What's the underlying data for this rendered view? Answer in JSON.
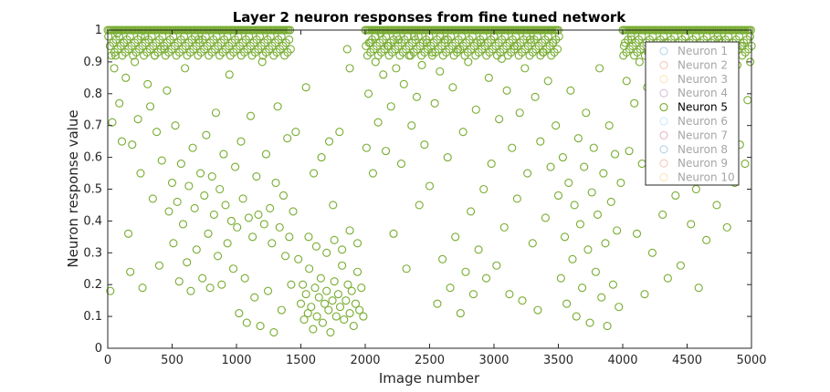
{
  "chart_data": {
    "type": "scatter",
    "title": "Layer 2 neuron responses from fine tuned network",
    "xlabel": "Image number",
    "ylabel": "Neuron response value",
    "xlim": [
      0,
      5000
    ],
    "ylim": [
      0,
      1
    ],
    "xticks": [
      "0",
      "500",
      "1000",
      "1500",
      "2000",
      "2500",
      "3000",
      "3500",
      "4000",
      "4500",
      "5000"
    ],
    "yticks": [
      "0",
      "0.1",
      "0.2",
      "0.3",
      "0.4",
      "0.5",
      "0.6",
      "0.7",
      "0.8",
      "0.9",
      "1"
    ],
    "grid": false,
    "legend_position": "top-right",
    "marker": "open-circle",
    "active_series": "Neuron 5",
    "legend": [
      {
        "name": "Neuron 1",
        "color": "#0072BD",
        "active": false
      },
      {
        "name": "Neuron 2",
        "color": "#D95319",
        "active": false
      },
      {
        "name": "Neuron 3",
        "color": "#EDB120",
        "active": false
      },
      {
        "name": "Neuron 4",
        "color": "#7E2F8E",
        "active": false
      },
      {
        "name": "Neuron 5",
        "color": "#77AC30",
        "active": true
      },
      {
        "name": "Neuron 6",
        "color": "#4DBEEE",
        "active": false
      },
      {
        "name": "Neuron 7",
        "color": "#A2142F",
        "active": false
      },
      {
        "name": "Neuron 8",
        "color": "#0072BD",
        "active": false
      },
      {
        "name": "Neuron 9",
        "color": "#D95319",
        "active": false
      },
      {
        "name": "Neuron 10",
        "color": "#EDB120",
        "active": false
      }
    ],
    "series": [
      {
        "name": "Neuron 5",
        "color": "#77AC30",
        "points": [
          [
            20,
            0.18
          ],
          [
            35,
            0.71
          ],
          [
            50,
            0.88
          ],
          [
            60,
            0.92
          ],
          [
            75,
            0.99
          ],
          [
            90,
            0.77
          ],
          [
            110,
            0.65
          ],
          [
            125,
            0.96
          ],
          [
            140,
            0.85
          ],
          [
            160,
            0.36
          ],
          [
            175,
            0.24
          ],
          [
            190,
            0.64
          ],
          [
            210,
            0.9
          ],
          [
            235,
            0.72
          ],
          [
            255,
            0.55
          ],
          [
            270,
            0.19
          ],
          [
            290,
            0.98
          ],
          [
            310,
            0.83
          ],
          [
            330,
            0.76
          ],
          [
            350,
            0.47
          ],
          [
            365,
            0.92
          ],
          [
            380,
            0.68
          ],
          [
            400,
            0.26
          ],
          [
            420,
            0.59
          ],
          [
            440,
            0.94
          ],
          [
            460,
            0.81
          ],
          [
            475,
            0.43
          ],
          [
            500,
            0.52
          ],
          [
            510,
            0.33
          ],
          [
            525,
            0.7
          ],
          [
            540,
            0.46
          ],
          [
            555,
            0.21
          ],
          [
            570,
            0.58
          ],
          [
            585,
            0.39
          ],
          [
            600,
            0.88
          ],
          [
            615,
            0.27
          ],
          [
            630,
            0.51
          ],
          [
            645,
            0.18
          ],
          [
            660,
            0.63
          ],
          [
            675,
            0.44
          ],
          [
            690,
            0.31
          ],
          [
            705,
            0.97
          ],
          [
            720,
            0.55
          ],
          [
            735,
            0.22
          ],
          [
            750,
            0.48
          ],
          [
            765,
            0.67
          ],
          [
            780,
            0.36
          ],
          [
            795,
            0.19
          ],
          [
            810,
            0.54
          ],
          [
            825,
            0.42
          ],
          [
            840,
            0.74
          ],
          [
            855,
            0.29
          ],
          [
            870,
            0.5
          ],
          [
            885,
            0.2
          ],
          [
            900,
            0.61
          ],
          [
            915,
            0.45
          ],
          [
            930,
            0.33
          ],
          [
            945,
            0.86
          ],
          [
            960,
            0.4
          ],
          [
            975,
            0.25
          ],
          [
            990,
            0.57
          ],
          [
            1005,
            0.38
          ],
          [
            1020,
            0.11
          ],
          [
            1035,
            0.65
          ],
          [
            1050,
            0.47
          ],
          [
            1065,
            0.22
          ],
          [
            1080,
            0.08
          ],
          [
            1095,
            0.41
          ],
          [
            1110,
            0.73
          ],
          [
            1125,
            0.35
          ],
          [
            1140,
            0.16
          ],
          [
            1155,
            0.54
          ],
          [
            1170,
            0.42
          ],
          [
            1185,
            0.07
          ],
          [
            1200,
            0.9
          ],
          [
            1215,
            0.39
          ],
          [
            1230,
            0.61
          ],
          [
            1245,
            0.18
          ],
          [
            1260,
            0.44
          ],
          [
            1275,
            0.33
          ],
          [
            1290,
            0.05
          ],
          [
            1305,
            0.52
          ],
          [
            1320,
            0.76
          ],
          [
            1335,
            0.38
          ],
          [
            1350,
            0.12
          ],
          [
            1365,
            0.48
          ],
          [
            1380,
            0.29
          ],
          [
            1395,
            0.66
          ],
          [
            1410,
            0.35
          ],
          [
            1425,
            0.2
          ],
          [
            1440,
            0.43
          ],
          [
            1460,
            0.68
          ],
          [
            1480,
            0.28
          ],
          [
            1500,
            0.14
          ],
          [
            1515,
            0.2
          ],
          [
            1525,
            0.09
          ],
          [
            1540,
            0.17
          ],
          [
            1555,
            0.11
          ],
          [
            1565,
            0.25
          ],
          [
            1580,
            0.13
          ],
          [
            1595,
            0.06
          ],
          [
            1610,
            0.19
          ],
          [
            1625,
            0.1
          ],
          [
            1640,
            0.16
          ],
          [
            1655,
            0.22
          ],
          [
            1670,
            0.08
          ],
          [
            1685,
            0.14
          ],
          [
            1700,
            0.18
          ],
          [
            1715,
            0.12
          ],
          [
            1730,
            0.05
          ],
          [
            1745,
            0.15
          ],
          [
            1760,
            0.21
          ],
          [
            1775,
            0.1
          ],
          [
            1790,
            0.17
          ],
          [
            1805,
            0.13
          ],
          [
            1820,
            0.26
          ],
          [
            1835,
            0.09
          ],
          [
            1850,
            0.15
          ],
          [
            1865,
            0.2
          ],
          [
            1880,
            0.11
          ],
          [
            1895,
            0.18
          ],
          [
            1910,
            0.07
          ],
          [
            1925,
            0.14
          ],
          [
            1940,
            0.24
          ],
          [
            1955,
            0.12
          ],
          [
            1970,
            0.19
          ],
          [
            1985,
            0.1
          ],
          [
            1560,
            0.35
          ],
          [
            1620,
            0.32
          ],
          [
            1700,
            0.3
          ],
          [
            1760,
            0.34
          ],
          [
            1820,
            0.31
          ],
          [
            1880,
            0.37
          ],
          [
            1940,
            0.33
          ],
          [
            1600,
            0.55
          ],
          [
            1720,
            0.65
          ],
          [
            1800,
            0.68
          ],
          [
            1860,
            0.94
          ],
          [
            1880,
            0.88
          ],
          [
            1540,
            0.82
          ],
          [
            1660,
            0.6
          ],
          [
            1750,
            0.45
          ],
          [
            2010,
            0.63
          ],
          [
            2025,
            0.8
          ],
          [
            2040,
            0.96
          ],
          [
            2060,
            0.55
          ],
          [
            2080,
            0.9
          ],
          [
            2100,
            0.71
          ],
          [
            2120,
            0.99
          ],
          [
            2140,
            0.86
          ],
          [
            2160,
            0.62
          ],
          [
            2180,
            0.95
          ],
          [
            2200,
            0.76
          ],
          [
            2220,
            0.36
          ],
          [
            2240,
            0.88
          ],
          [
            2260,
            0.97
          ],
          [
            2280,
            0.58
          ],
          [
            2300,
            0.83
          ],
          [
            2320,
            0.25
          ],
          [
            2340,
            0.92
          ],
          [
            2360,
            0.7
          ],
          [
            2380,
            0.98
          ],
          [
            2400,
            0.79
          ],
          [
            2420,
            0.45
          ],
          [
            2440,
            0.89
          ],
          [
            2460,
            0.64
          ],
          [
            2480,
            0.96
          ],
          [
            2500,
            0.51
          ],
          [
            2520,
            0.93
          ],
          [
            2540,
            0.77
          ],
          [
            2560,
            0.14
          ],
          [
            2580,
            0.87
          ],
          [
            2600,
            0.28
          ],
          [
            2620,
            0.97
          ],
          [
            2640,
            0.6
          ],
          [
            2660,
            0.19
          ],
          [
            2680,
            0.82
          ],
          [
            2700,
            0.35
          ],
          [
            2720,
            0.94
          ],
          [
            2740,
            0.11
          ],
          [
            2760,
            0.68
          ],
          [
            2780,
            0.24
          ],
          [
            2800,
            0.9
          ],
          [
            2820,
            0.43
          ],
          [
            2840,
            0.17
          ],
          [
            2860,
            0.75
          ],
          [
            2880,
            0.31
          ],
          [
            2900,
            0.96
          ],
          [
            2920,
            0.5
          ],
          [
            2940,
            0.22
          ],
          [
            2960,
            0.85
          ],
          [
            2980,
            0.58
          ],
          [
            3000,
            0.98
          ],
          [
            3020,
            0.26
          ],
          [
            3040,
            0.72
          ],
          [
            3060,
            0.91
          ],
          [
            3080,
            0.38
          ],
          [
            3100,
            0.81
          ],
          [
            3120,
            0.17
          ],
          [
            3140,
            0.63
          ],
          [
            3160,
            0.95
          ],
          [
            3180,
            0.47
          ],
          [
            3200,
            0.74
          ],
          [
            3220,
            0.15
          ],
          [
            3240,
            0.88
          ],
          [
            3260,
            0.55
          ],
          [
            3280,
            0.97
          ],
          [
            3300,
            0.33
          ],
          [
            3320,
            0.79
          ],
          [
            3340,
            0.12
          ],
          [
            3360,
            0.65
          ],
          [
            3380,
            0.93
          ],
          [
            3400,
            0.41
          ],
          [
            3420,
            0.84
          ],
          [
            3440,
            0.57
          ],
          [
            3460,
            0.96
          ],
          [
            3480,
            0.7
          ],
          [
            3500,
            0.48
          ],
          [
            3520,
            0.22
          ],
          [
            3535,
            0.6
          ],
          [
            3550,
            0.35
          ],
          [
            3565,
            0.14
          ],
          [
            3580,
            0.52
          ],
          [
            3595,
            0.81
          ],
          [
            3610,
            0.28
          ],
          [
            3625,
            0.45
          ],
          [
            3640,
            0.1
          ],
          [
            3655,
            0.66
          ],
          [
            3670,
            0.39
          ],
          [
            3685,
            0.19
          ],
          [
            3700,
            0.57
          ],
          [
            3715,
            0.74
          ],
          [
            3730,
            0.31
          ],
          [
            3745,
            0.08
          ],
          [
            3760,
            0.49
          ],
          [
            3775,
            0.63
          ],
          [
            3790,
            0.24
          ],
          [
            3805,
            0.42
          ],
          [
            3820,
            0.88
          ],
          [
            3835,
            0.16
          ],
          [
            3850,
            0.55
          ],
          [
            3865,
            0.33
          ],
          [
            3880,
            0.07
          ],
          [
            3895,
            0.7
          ],
          [
            3910,
            0.46
          ],
          [
            3925,
            0.2
          ],
          [
            3940,
            0.61
          ],
          [
            3955,
            0.37
          ],
          [
            3970,
            0.13
          ],
          [
            3985,
            0.52
          ],
          [
            4010,
            0.95
          ],
          [
            4030,
            0.84
          ],
          [
            4050,
            0.62
          ],
          [
            4070,
            0.97
          ],
          [
            4090,
            0.77
          ],
          [
            4110,
            0.36
          ],
          [
            4130,
            0.9
          ],
          [
            4150,
            0.58
          ],
          [
            4170,
            0.17
          ],
          [
            4190,
            0.82
          ],
          [
            4210,
            0.69
          ],
          [
            4230,
            0.3
          ],
          [
            4250,
            0.93
          ],
          [
            4270,
            0.53
          ],
          [
            4290,
            0.78
          ],
          [
            4310,
            0.42
          ],
          [
            4330,
            0.96
          ],
          [
            4350,
            0.22
          ],
          [
            4370,
            0.66
          ],
          [
            4390,
            0.87
          ],
          [
            4410,
            0.48
          ],
          [
            4430,
            0.74
          ],
          [
            4450,
            0.26
          ],
          [
            4470,
            0.92
          ],
          [
            4490,
            0.57
          ],
          [
            4510,
            0.8
          ],
          [
            4530,
            0.39
          ],
          [
            4550,
            0.95
          ],
          [
            4570,
            0.5
          ],
          [
            4590,
            0.19
          ],
          [
            4610,
            0.86
          ],
          [
            4630,
            0.63
          ],
          [
            4650,
            0.34
          ],
          [
            4670,
            0.91
          ],
          [
            4690,
            0.55
          ],
          [
            4710,
            0.74
          ],
          [
            4730,
            0.45
          ],
          [
            4750,
            0.97
          ],
          [
            4770,
            0.6
          ],
          [
            4790,
            0.83
          ],
          [
            4810,
            0.38
          ],
          [
            4830,
            0.93
          ],
          [
            4850,
            0.7
          ],
          [
            4870,
            0.52
          ],
          [
            4890,
            0.89
          ],
          [
            4910,
            0.64
          ],
          [
            4930,
            0.95
          ],
          [
            4950,
            0.58
          ],
          [
            4970,
            0.78
          ],
          [
            4990,
            0.9
          ]
        ],
        "saturated_ranges": [
          [
            0,
            1420
          ],
          [
            2000,
            3500
          ],
          [
            4000,
            5000
          ]
        ]
      }
    ]
  }
}
